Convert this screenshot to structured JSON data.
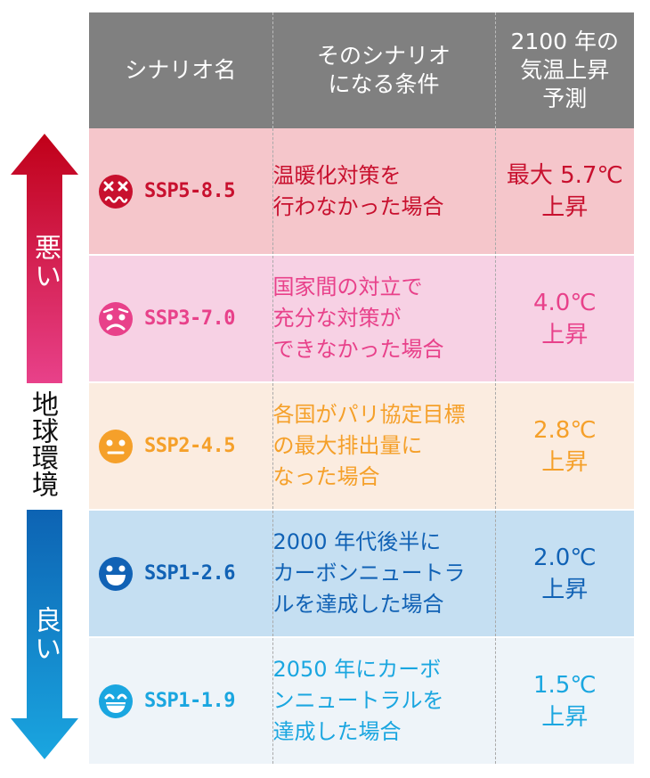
{
  "side": {
    "bad": "悪い",
    "earth": "地球環境",
    "good": "良い"
  },
  "header": {
    "name": "シナリオ名",
    "cond_line1": "そのシナリオ",
    "cond_line2": "になる条件",
    "pred_line1": "2100 年の",
    "pred_line2": "気温上昇",
    "pred_line3": "予測"
  },
  "rows": [
    {
      "face": "dizzy-face-icon",
      "color": "#c8102e",
      "bg": "#f5c6cb",
      "name": "SSP5-8.5",
      "cond": [
        "温暖化対策を",
        "行わなかった場合"
      ],
      "pred": [
        "最大 5.7℃",
        "上昇"
      ]
    },
    {
      "face": "worried-face-icon",
      "color": "#e8418a",
      "bg": "#f7d1e4",
      "name": "SSP3-7.0",
      "cond": [
        "国家間の対立で",
        "充分な対策が",
        "できなかった場合"
      ],
      "pred": [
        "4.0℃",
        "上昇"
      ]
    },
    {
      "face": "neutral-face-icon",
      "color": "#f5a02a",
      "bg": "#fbece0",
      "name": "SSP2-4.5",
      "cond": [
        "各国がパリ協定目標",
        "の最大排出量に",
        "なった場合"
      ],
      "pred": [
        "2.8℃",
        "上昇"
      ]
    },
    {
      "face": "smiling-face-icon",
      "color": "#1162b5",
      "bg": "#c5dff2",
      "name": "SSP1-2.6",
      "cond": [
        "2000 年代後半に",
        "カーボンニュートラ",
        "ルを達成した場合"
      ],
      "pred": [
        "2.0℃",
        "上昇"
      ]
    },
    {
      "face": "grinning-face-icon",
      "color": "#1aa6e0",
      "bg": "#eef4f9",
      "name": "SSP1-1.9",
      "cond": [
        "2050 年にカーボ",
        "ンニュートラルを",
        "達成した場合"
      ],
      "pred": [
        "1.5℃",
        "上昇"
      ]
    }
  ]
}
